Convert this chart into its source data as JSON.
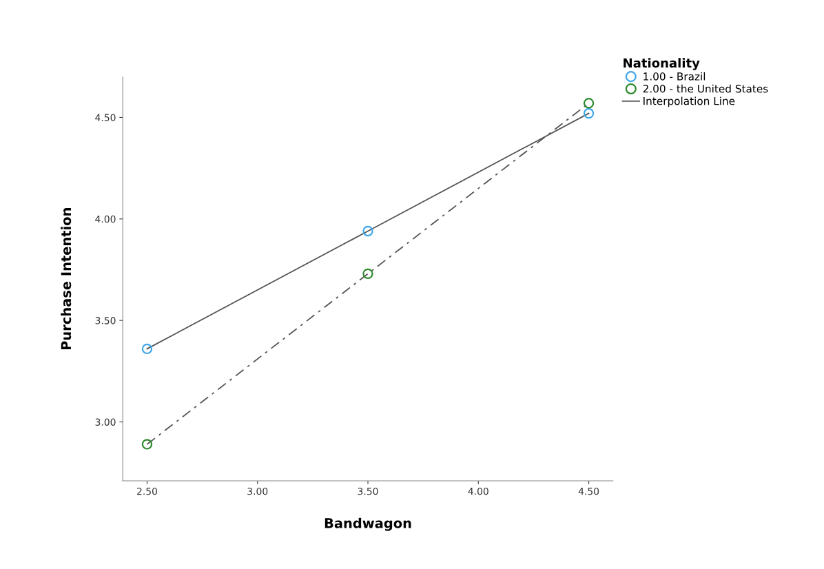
{
  "chart_data": {
    "type": "scatter",
    "xlabel": "Bandwagon",
    "ylabel": "Purchase Intention",
    "legend_title": "Nationality",
    "x": [
      2.5,
      3.5,
      4.5
    ],
    "series": [
      {
        "name": "1.00 - Brazil",
        "type": "scatter",
        "color": "#3ea6ec",
        "marker": "circle",
        "values": [
          3.36,
          3.94,
          4.52
        ]
      },
      {
        "name": "2.00 - the United States",
        "type": "scatter",
        "color": "#2e8b2e",
        "marker": "circle",
        "values": [
          2.89,
          3.73,
          4.57
        ]
      },
      {
        "name": "Interpolation Line",
        "type": "line",
        "color": "#555555",
        "line_style": "solid",
        "values": [
          3.36,
          3.94,
          4.52
        ]
      },
      {
        "type": "line",
        "color": "#555555",
        "line_style": "dashdot",
        "values": [
          2.89,
          3.73,
          4.57
        ]
      }
    ],
    "xlim": [
      2.39,
      4.61
    ],
    "ylim": [
      2.71,
      4.7
    ],
    "xticks": [
      {
        "value": 2.5,
        "label": "2.50"
      },
      {
        "value": 3.0,
        "label": "3.00"
      },
      {
        "value": 3.5,
        "label": "3.50"
      },
      {
        "value": 4.0,
        "label": "4.00"
      },
      {
        "value": 4.5,
        "label": "4.50"
      }
    ],
    "yticks": [
      {
        "value": 3.0,
        "label": "3.00"
      },
      {
        "value": 3.5,
        "label": "3.50"
      },
      {
        "value": 4.0,
        "label": "4.00"
      },
      {
        "value": 4.5,
        "label": "4.50"
      }
    ],
    "grid": false,
    "legend": "top right"
  }
}
